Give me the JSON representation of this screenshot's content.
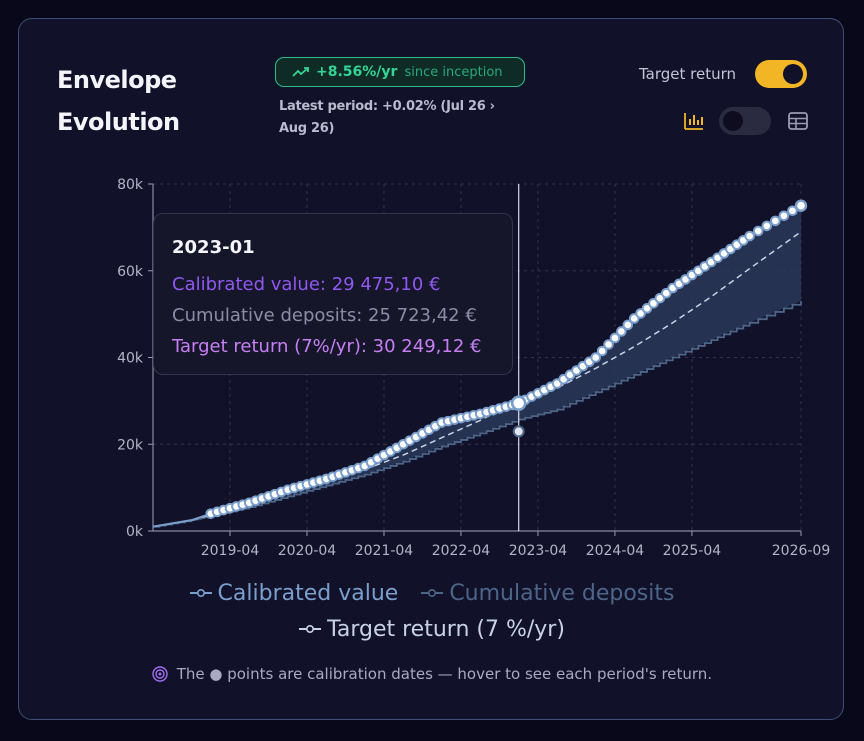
{
  "header": {
    "title_line1": "Envelope",
    "title_line2": "Evolution",
    "badge_rate": "+8.56%/yr",
    "badge_since": "since inception",
    "latest_period": "Latest period: +0.02% (Jul 26 › Aug 26)",
    "target_return_label": "Target return",
    "target_return_toggle": "on",
    "view_toggle": "chart"
  },
  "icons": {
    "badge": "trending-up-icon",
    "chart_view": "bar-chart-icon",
    "table_view": "table-icon",
    "note": "target-icon"
  },
  "colors": {
    "calibrated": "#7b9fcc",
    "deposits": "#4c6588",
    "target": "#c8d2e6",
    "accent_toggle": "#f1b525",
    "badge_green": "#35d494"
  },
  "tooltip": {
    "date": "2023-01",
    "calibrated": "Calibrated value: 29 475,10 €",
    "deposits": "Cumulative deposits: 25 723,42 €",
    "target": "Target return (7%/yr): 30 249,12 €"
  },
  "legend": {
    "calibrated": "Calibrated value",
    "deposits": "Cumulative deposits",
    "target": "Target return (7 %/yr)"
  },
  "note": "The ● points are calibration dates — hover to see each period's return.",
  "chart_data": {
    "type": "line",
    "x_ticks": [
      "2019-04",
      "2020-04",
      "2021-04",
      "2022-04",
      "2023-04",
      "2024-04",
      "2025-04",
      "2026-09"
    ],
    "y_ticks": [
      "0k",
      "20k",
      "40k",
      "60k",
      "80k"
    ],
    "ylim": [
      0,
      80000
    ],
    "xlim": [
      "2018-04",
      "2026-09"
    ],
    "hover_date": "2023-01",
    "grid": true,
    "legend_position": "bottom",
    "series": [
      {
        "name": "Calibrated value",
        "points": [
          [
            "2018-04",
            1000
          ],
          [
            "2018-10",
            2500
          ],
          [
            "2019-01",
            4000
          ],
          [
            "2019-07",
            6500
          ],
          [
            "2020-01",
            9500
          ],
          [
            "2020-07",
            12000
          ],
          [
            "2021-01",
            15000
          ],
          [
            "2021-07",
            20000
          ],
          [
            "2022-01",
            25000
          ],
          [
            "2022-07",
            27000
          ],
          [
            "2023-01",
            29475
          ],
          [
            "2023-07",
            34000
          ],
          [
            "2024-01",
            40000
          ],
          [
            "2024-07",
            49000
          ],
          [
            "2025-01",
            56000
          ],
          [
            "2025-07",
            62000
          ],
          [
            "2026-01",
            68000
          ],
          [
            "2026-09",
            75000
          ]
        ]
      },
      {
        "name": "Cumulative deposits",
        "points": [
          [
            "2018-04",
            1000
          ],
          [
            "2018-10",
            2500
          ],
          [
            "2019-01",
            3500
          ],
          [
            "2019-07",
            5500
          ],
          [
            "2020-01",
            8000
          ],
          [
            "2020-07",
            10500
          ],
          [
            "2021-01",
            13000
          ],
          [
            "2021-07",
            16000
          ],
          [
            "2022-01",
            19500
          ],
          [
            "2022-07",
            22500
          ],
          [
            "2023-01",
            25723
          ],
          [
            "2023-07",
            28000
          ],
          [
            "2024-01",
            32000
          ],
          [
            "2024-07",
            36000
          ],
          [
            "2025-01",
            40000
          ],
          [
            "2025-07",
            44000
          ],
          [
            "2026-01",
            48000
          ],
          [
            "2026-09",
            53000
          ]
        ]
      },
      {
        "name": "Target return (7 %/yr)",
        "points": [
          [
            "2018-04",
            1000
          ],
          [
            "2018-10",
            2500
          ],
          [
            "2019-01",
            3700
          ],
          [
            "2019-07",
            6000
          ],
          [
            "2020-01",
            8700
          ],
          [
            "2020-07",
            11300
          ],
          [
            "2021-01",
            14200
          ],
          [
            "2021-07",
            17500
          ],
          [
            "2022-01",
            21500
          ],
          [
            "2022-07",
            25500
          ],
          [
            "2023-01",
            30249
          ],
          [
            "2023-07",
            33000
          ],
          [
            "2024-01",
            37500
          ],
          [
            "2024-07",
            42500
          ],
          [
            "2025-01",
            48000
          ],
          [
            "2025-07",
            54000
          ],
          [
            "2026-01",
            60500
          ],
          [
            "2026-09",
            69000
          ]
        ]
      }
    ]
  }
}
